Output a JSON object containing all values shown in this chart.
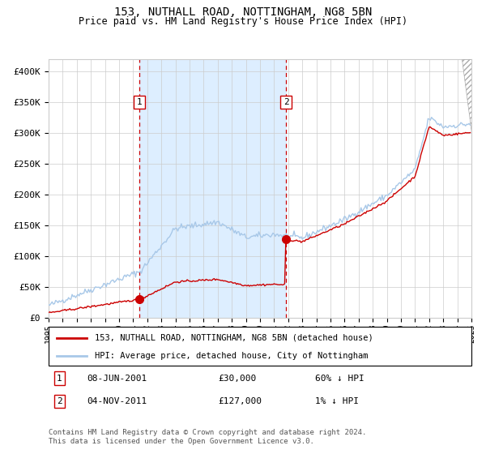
{
  "title1": "153, NUTHALL ROAD, NOTTINGHAM, NG8 5BN",
  "title2": "Price paid vs. HM Land Registry's House Price Index (HPI)",
  "x_start_year": 1995,
  "x_end_year": 2025,
  "ylim": [
    0,
    420000
  ],
  "yticks": [
    0,
    50000,
    100000,
    150000,
    200000,
    250000,
    300000,
    350000,
    400000
  ],
  "ytick_labels": [
    "£0",
    "£50K",
    "£100K",
    "£150K",
    "£200K",
    "£250K",
    "£300K",
    "£350K",
    "£400K"
  ],
  "hpi_line_color": "#a8c8e8",
  "price_line_color": "#cc0000",
  "marker_color": "#cc0000",
  "vline_color": "#cc0000",
  "shade_color": "#ddeeff",
  "grid_color": "#cccccc",
  "background_color": "#ffffff",
  "sale1_year": 2001.44,
  "sale1_price": 30000,
  "sale2_year": 2011.84,
  "sale2_price": 127000,
  "legend_label1": "153, NUTHALL ROAD, NOTTINGHAM, NG8 5BN (detached house)",
  "legend_label2": "HPI: Average price, detached house, City of Nottingham",
  "note1_num": "1",
  "note1_date": "08-JUN-2001",
  "note1_price": "£30,000",
  "note1_hpi": "60% ↓ HPI",
  "note2_num": "2",
  "note2_date": "04-NOV-2011",
  "note2_price": "£127,000",
  "note2_hpi": "1% ↓ HPI",
  "footer": "Contains HM Land Registry data © Crown copyright and database right 2024.\nThis data is licensed under the Open Government Licence v3.0."
}
